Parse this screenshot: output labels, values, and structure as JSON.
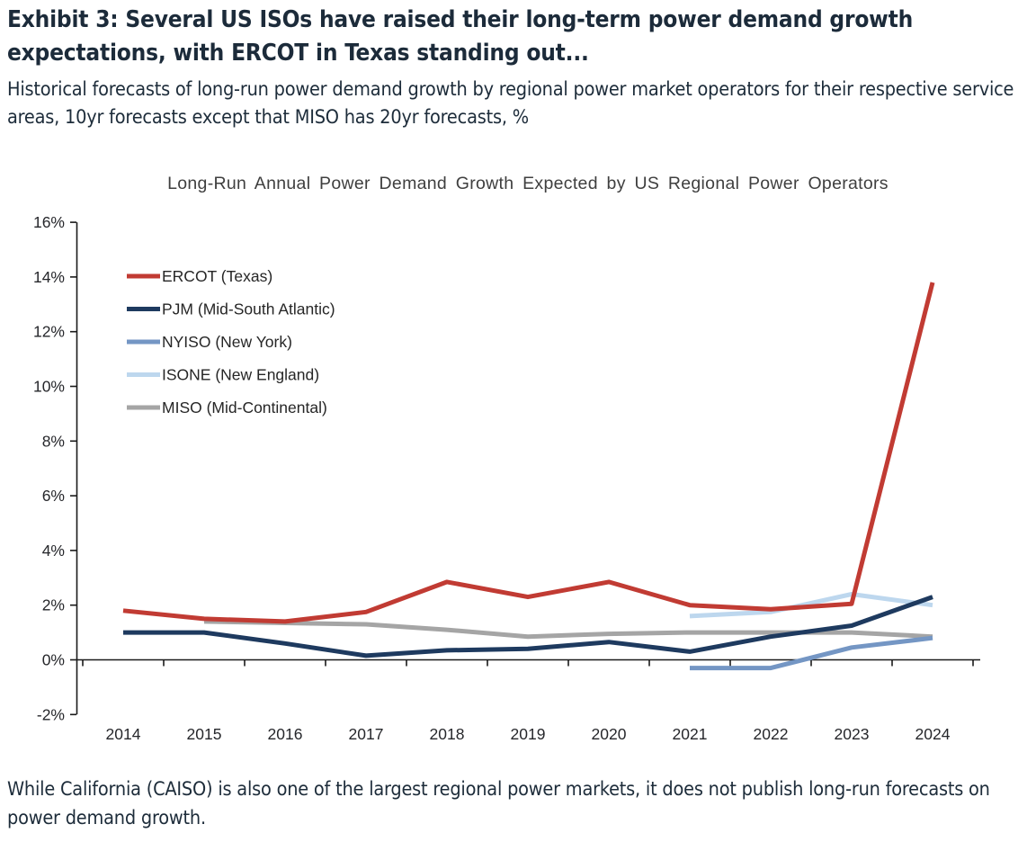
{
  "header": {
    "exhibit_title": "Exhibit 3: Several US ISOs have raised their long-term power demand growth expectations, with ERCOT in Texas standing out...",
    "description": "Historical forecasts of long-run power demand growth by regional power market operators for their respective service areas, 10yr forecasts except that MISO has 20yr forecasts, %"
  },
  "footnote": "While California (CAISO) is also one of the largest regional power markets, it does not publish long-run forecasts on power demand growth.",
  "chart_data": {
    "type": "line",
    "title": "Long-Run Annual Power Demand Growth Expected by US Regional Power Operators",
    "categories": [
      "2014",
      "2015",
      "2016",
      "2017",
      "2018",
      "2019",
      "2020",
      "2021",
      "2022",
      "2023",
      "2024"
    ],
    "unit": "%",
    "ylabel": "",
    "xlabel": "",
    "ylim": [
      -2,
      16
    ],
    "ytick_step": 2,
    "grid": false,
    "legend_position": "upper-left-inside",
    "axis_color": "#1a1a1a",
    "tick_label_color": "#26272b",
    "title_color": "#3f3f3f",
    "series": [
      {
        "name": "ERCOT (Texas)",
        "color": "#C13B33",
        "values": [
          1.8,
          1.5,
          1.4,
          1.75,
          2.85,
          2.3,
          2.85,
          2.0,
          1.85,
          2.05,
          13.8
        ]
      },
      {
        "name": "PJM (Mid-South Atlantic)",
        "color": "#1E3A5F",
        "values": [
          1.0,
          1.0,
          0.6,
          0.15,
          0.35,
          0.4,
          0.65,
          0.3,
          0.85,
          1.25,
          2.3
        ]
      },
      {
        "name": "NYISO (New York)",
        "color": "#7496C4",
        "values": [
          null,
          null,
          null,
          null,
          null,
          null,
          null,
          -0.3,
          -0.3,
          0.45,
          0.8
        ]
      },
      {
        "name": "ISONE (New England)",
        "color": "#BDD7EE",
        "values": [
          null,
          null,
          null,
          null,
          null,
          null,
          null,
          1.6,
          1.75,
          2.4,
          2.0
        ]
      },
      {
        "name": "MISO (Mid-Continental)",
        "color": "#A5A5A5",
        "values": [
          null,
          1.4,
          1.35,
          1.3,
          1.1,
          0.85,
          0.95,
          1.0,
          1.0,
          1.0,
          0.85
        ]
      }
    ]
  }
}
